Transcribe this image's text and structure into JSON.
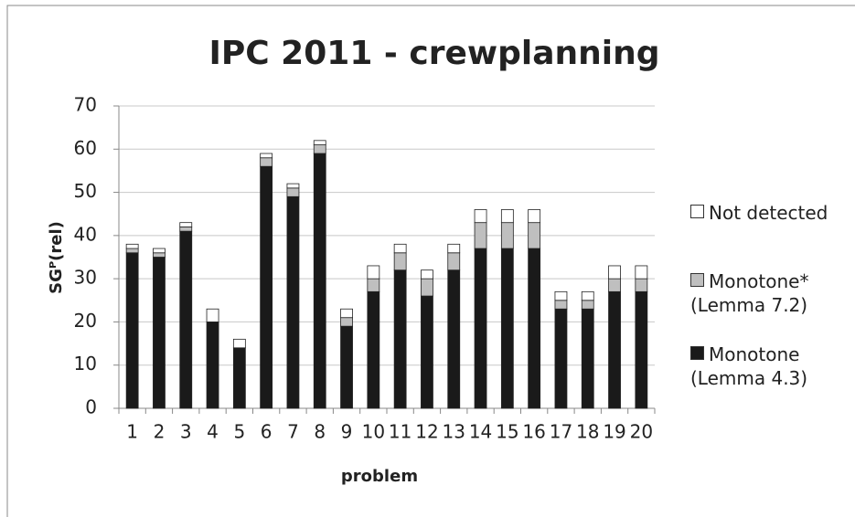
{
  "chart_data": {
    "type": "stacked-bar",
    "title": "IPC 2011 - crewplanning",
    "x_label": "problem",
    "y_label": "SGᴾ(rel)",
    "categories": [
      "1",
      "2",
      "3",
      "4",
      "5",
      "6",
      "7",
      "8",
      "9",
      "10",
      "11",
      "12",
      "13",
      "14",
      "15",
      "16",
      "17",
      "18",
      "19",
      "20"
    ],
    "series": [
      {
        "name": "Monotone (Lemma 4.3)",
        "color": "#1a1a1a",
        "values": [
          36,
          35,
          41,
          20,
          14,
          56,
          49,
          59,
          19,
          27,
          32,
          26,
          32,
          37,
          37,
          37,
          23,
          23,
          27,
          27
        ]
      },
      {
        "name": "Monotone* (Lemma 7.2)",
        "color": "#bfbfbf",
        "values": [
          1,
          1,
          1,
          0,
          0,
          2,
          2,
          2,
          2,
          3,
          4,
          4,
          4,
          6,
          6,
          6,
          2,
          2,
          3,
          3
        ]
      },
      {
        "name": "Not detected",
        "color": "#ffffff",
        "values": [
          1,
          1,
          1,
          3,
          2,
          1,
          1,
          1,
          2,
          3,
          2,
          2,
          2,
          3,
          3,
          3,
          2,
          2,
          3,
          3
        ]
      }
    ],
    "ylim": [
      0,
      70
    ],
    "yticks": [
      0,
      10,
      20,
      30,
      40,
      50,
      60,
      70
    ],
    "grid": true
  }
}
